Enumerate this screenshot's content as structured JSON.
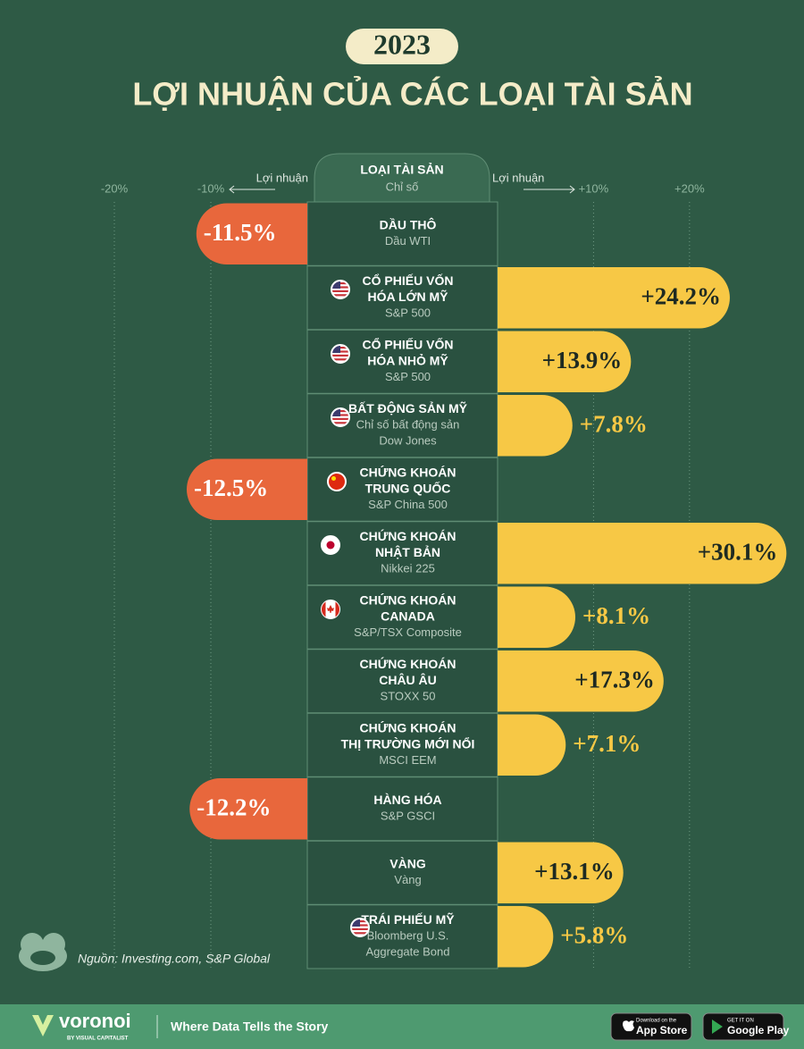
{
  "chart_data": {
    "type": "diverging-bar",
    "year": "2023",
    "title": "LỢI NHUẬN CỦA CÁC LOẠI TÀI SẢN",
    "column_header": "LOẠI TÀI SẢN",
    "column_subheader": "Chỉ số",
    "axis_label_left": "Lợi nhuận",
    "axis_label_right": "Lợi nhuận",
    "categories": [
      [
        "DẦU THÔ"
      ],
      [
        "CỔ PHIẾU VỐN",
        "HÓA LỚN MỸ"
      ],
      [
        "CỔ PHIẾU VỐN",
        "HÓA NHỎ MỸ"
      ],
      [
        "BẤT ĐỘNG SẢN MỸ"
      ],
      [
        "CHỨNG KHOÁN",
        "TRUNG QUỐC"
      ],
      [
        "CHỨNG KHOÁN",
        "NHẬT BẢN"
      ],
      [
        "CHỨNG KHOÁN",
        "CANADA"
      ],
      [
        "CHỨNG KHOÁN",
        "CHÂU ÂU"
      ],
      [
        "CHỨNG KHOÁN",
        "THỊ TRƯỜNG MỚI NỔI"
      ],
      [
        "HÀNG HÓA"
      ],
      [
        "VÀNG"
      ],
      [
        "TRÁI PHIẾU MỸ"
      ]
    ],
    "indices": [
      [
        "Dầu WTI"
      ],
      [
        "S&P 500"
      ],
      [
        "S&P 500"
      ],
      [
        "Chỉ số bất động sản",
        "Dow Jones"
      ],
      [
        "S&P China 500"
      ],
      [
        "Nikkei 225"
      ],
      [
        "S&P/TSX Composite"
      ],
      [
        "STOXX 50"
      ],
      [
        "MSCI EEM"
      ],
      [
        "S&P GSCI"
      ],
      [
        "Vàng"
      ],
      [
        "Bloomberg U.S.",
        "Aggregate Bond"
      ]
    ],
    "values": [
      -11.5,
      24.2,
      13.9,
      7.8,
      -12.5,
      30.1,
      8.1,
      17.3,
      7.1,
      -12.2,
      13.1,
      5.8
    ],
    "value_labels": [
      "-11.5%",
      "+24.2%",
      "+13.9%",
      "+7.8%",
      "-12.5%",
      "+30.1%",
      "+8.1%",
      "+17.3%",
      "+7.1%",
      "-12.2%",
      "+13.1%",
      "+5.8%"
    ],
    "positive_color": "#f7c845",
    "negative_color": "#e8673c",
    "xlim": [
      -30,
      31
    ],
    "xticks": [
      {
        "value": -20,
        "label": "-20%"
      },
      {
        "value": -10,
        "label": "-10%"
      },
      {
        "value": 10,
        "label": "+10%"
      },
      {
        "value": 20,
        "label": "+20%"
      }
    ],
    "grid": true,
    "source": "Nguồn: Investing.com, S&P Global",
    "brand": "voronoi",
    "brand_sub": "BY VISUAL CAPITALIST",
    "tagline": "Where Data Tells the Story",
    "app_store_small": "Download on the",
    "app_store": "App Store",
    "google_play_small": "GET IT ON",
    "google_play": "Google Play"
  }
}
